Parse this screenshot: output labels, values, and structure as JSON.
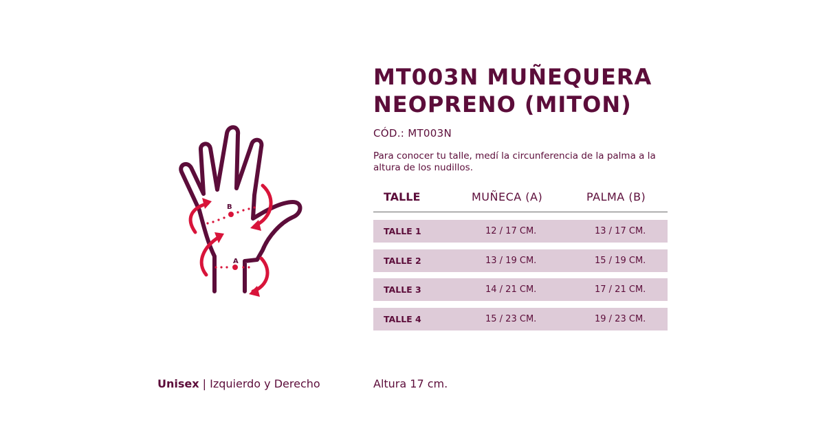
{
  "product": {
    "title_line1": "MT003N MUÑEQUERA",
    "title_line2": "NEOPRENO (MITON)",
    "code": "CÓD.: MT003N",
    "description": "Para conocer tu talle, medí la circunferencia de la palma a la altura de los nudillos."
  },
  "diagram": {
    "label_a": "A",
    "label_b": "B",
    "icon": "hand-measurement-icon"
  },
  "table": {
    "headers": [
      "TALLE",
      "MUÑECA (A)",
      "PALMA (B)"
    ],
    "rows": [
      [
        "TALLE 1",
        "12 / 17 CM.",
        "13 / 17 CM."
      ],
      [
        "TALLE 2",
        "13 / 19 CM.",
        "15 / 19 CM."
      ],
      [
        "TALLE 3",
        "14 / 21 CM.",
        "17 / 21 CM."
      ],
      [
        "TALLE 4",
        "15 / 23 CM.",
        "19 / 23 CM."
      ]
    ]
  },
  "footer": {
    "unisex": "Unisex",
    "separator": "|",
    "sides": "Izquierdo y Derecho",
    "height": "Altura 17 cm."
  },
  "colors": {
    "primary": "#5c0d3a",
    "accent": "#d8143a",
    "row_bg": "#decbd8"
  }
}
